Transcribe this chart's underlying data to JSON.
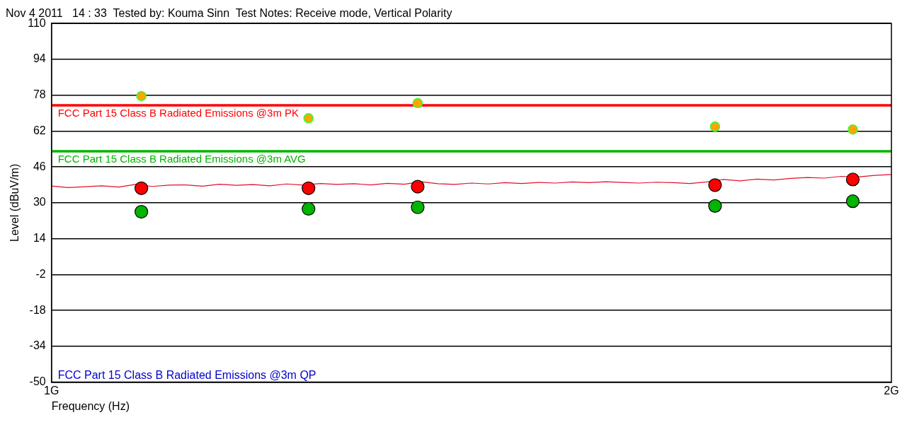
{
  "chart_data": {
    "type": "scatter",
    "title": "Nov 4 2011   14 : 33  Tested by: Kouma Sinn  Test Notes: Receive mode, Vertical Polarity",
    "xlabel": "Frequency (Hz)",
    "ylabel": "Level (dBuV/m)",
    "xlim": [
      1,
      2
    ],
    "xticks": [
      {
        "value": 1,
        "label": "1G"
      },
      {
        "value": 2,
        "label": "2G"
      }
    ],
    "ylim": [
      -50,
      110
    ],
    "yticks": [
      -50,
      -34,
      -18,
      -2,
      14,
      30,
      46,
      62,
      78,
      94,
      110
    ],
    "grid": "y",
    "legend": false,
    "series": [
      {
        "type": "line",
        "marker": "none",
        "color": "#e0102a",
        "x": [
          1.0,
          1.02,
          1.04,
          1.06,
          1.08,
          1.1,
          1.12,
          1.14,
          1.16,
          1.18,
          1.2,
          1.22,
          1.24,
          1.26,
          1.28,
          1.3,
          1.32,
          1.34,
          1.36,
          1.38,
          1.4,
          1.42,
          1.44,
          1.46,
          1.48,
          1.5,
          1.52,
          1.54,
          1.56,
          1.58,
          1.6,
          1.62,
          1.64,
          1.66,
          1.68,
          1.7,
          1.72,
          1.74,
          1.76,
          1.78,
          1.8,
          1.82,
          1.84,
          1.86,
          1.88,
          1.9,
          1.92,
          1.94,
          1.96,
          1.98,
          2.0
        ],
        "values": [
          37.5,
          36.8,
          37.2,
          37.6,
          37.0,
          38.2,
          37.3,
          37.9,
          38.0,
          37.4,
          38.3,
          37.8,
          38.1,
          37.6,
          38.4,
          37.9,
          38.6,
          38.2,
          38.5,
          38.0,
          38.7,
          38.3,
          39.4,
          38.5,
          38.2,
          38.8,
          38.4,
          39.0,
          38.6,
          39.1,
          38.8,
          39.3,
          39.0,
          39.4,
          39.1,
          38.8,
          39.2,
          39.0,
          38.6,
          39.3,
          40.4,
          39.8,
          40.6,
          40.2,
          40.9,
          41.3,
          41.0,
          41.8,
          41.5,
          42.2,
          42.6
        ]
      },
      {
        "type": "scatter",
        "marker": "circle",
        "color": "#ffa500",
        "x": [
          1.107,
          1.306,
          1.436,
          1.79,
          1.954
        ],
        "values": [
          77.6,
          67.7,
          74.5,
          64.0,
          62.7
        ]
      },
      {
        "type": "scatter",
        "marker": "circle",
        "color": "#ff0000",
        "x": [
          1.107,
          1.306,
          1.436,
          1.79,
          1.954
        ],
        "values": [
          36.5,
          36.5,
          37.2,
          37.9,
          40.4
        ]
      },
      {
        "type": "scatter",
        "marker": "circle",
        "color": "#00b400",
        "x": [
          1.107,
          1.306,
          1.436,
          1.79,
          1.954
        ],
        "values": [
          26.0,
          27.3,
          28.0,
          28.6,
          30.7
        ]
      }
    ],
    "ref_lines": [
      {
        "axis": "y",
        "value": 73.5,
        "label": "FCC Part 15 Class B Radiated Emissions @3m PK",
        "color": "#ff0000"
      },
      {
        "axis": "y",
        "value": 53,
        "label": "FCC Part 15 Class B Radiated Emissions @3m AVG",
        "color": "#00b400"
      }
    ],
    "annotations": [
      "FCC Part 15 Class B Radiated Emissions @3m QP"
    ]
  }
}
